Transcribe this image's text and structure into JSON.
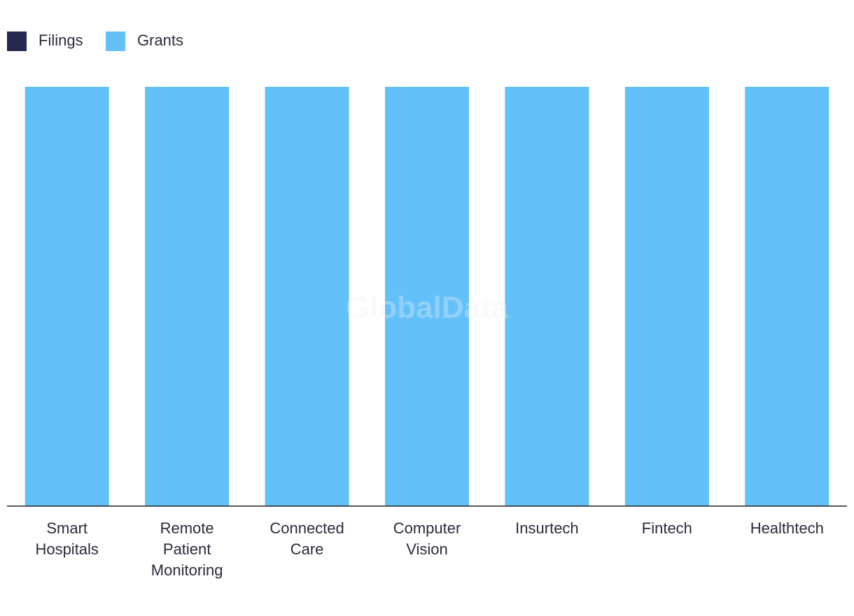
{
  "chart_data": {
    "type": "stacked_bar",
    "watermark": "GlobalData",
    "categories": [
      "Smart Hospitals",
      "Remote Patient Monitoring",
      "Connected Care",
      "Computer Vision",
      "Insurtech",
      "Fintech",
      "Healthtech"
    ],
    "series": [
      {
        "name": "Filings",
        "color": "#262750",
        "values": [
          0,
          0,
          0,
          0,
          0,
          0,
          0
        ]
      },
      {
        "name": "Grants",
        "color": "#63c0f8",
        "values": [
          100,
          100,
          100,
          100,
          100,
          100,
          100
        ]
      }
    ],
    "ylim": [
      0,
      100
    ],
    "legend": "top-left"
  }
}
